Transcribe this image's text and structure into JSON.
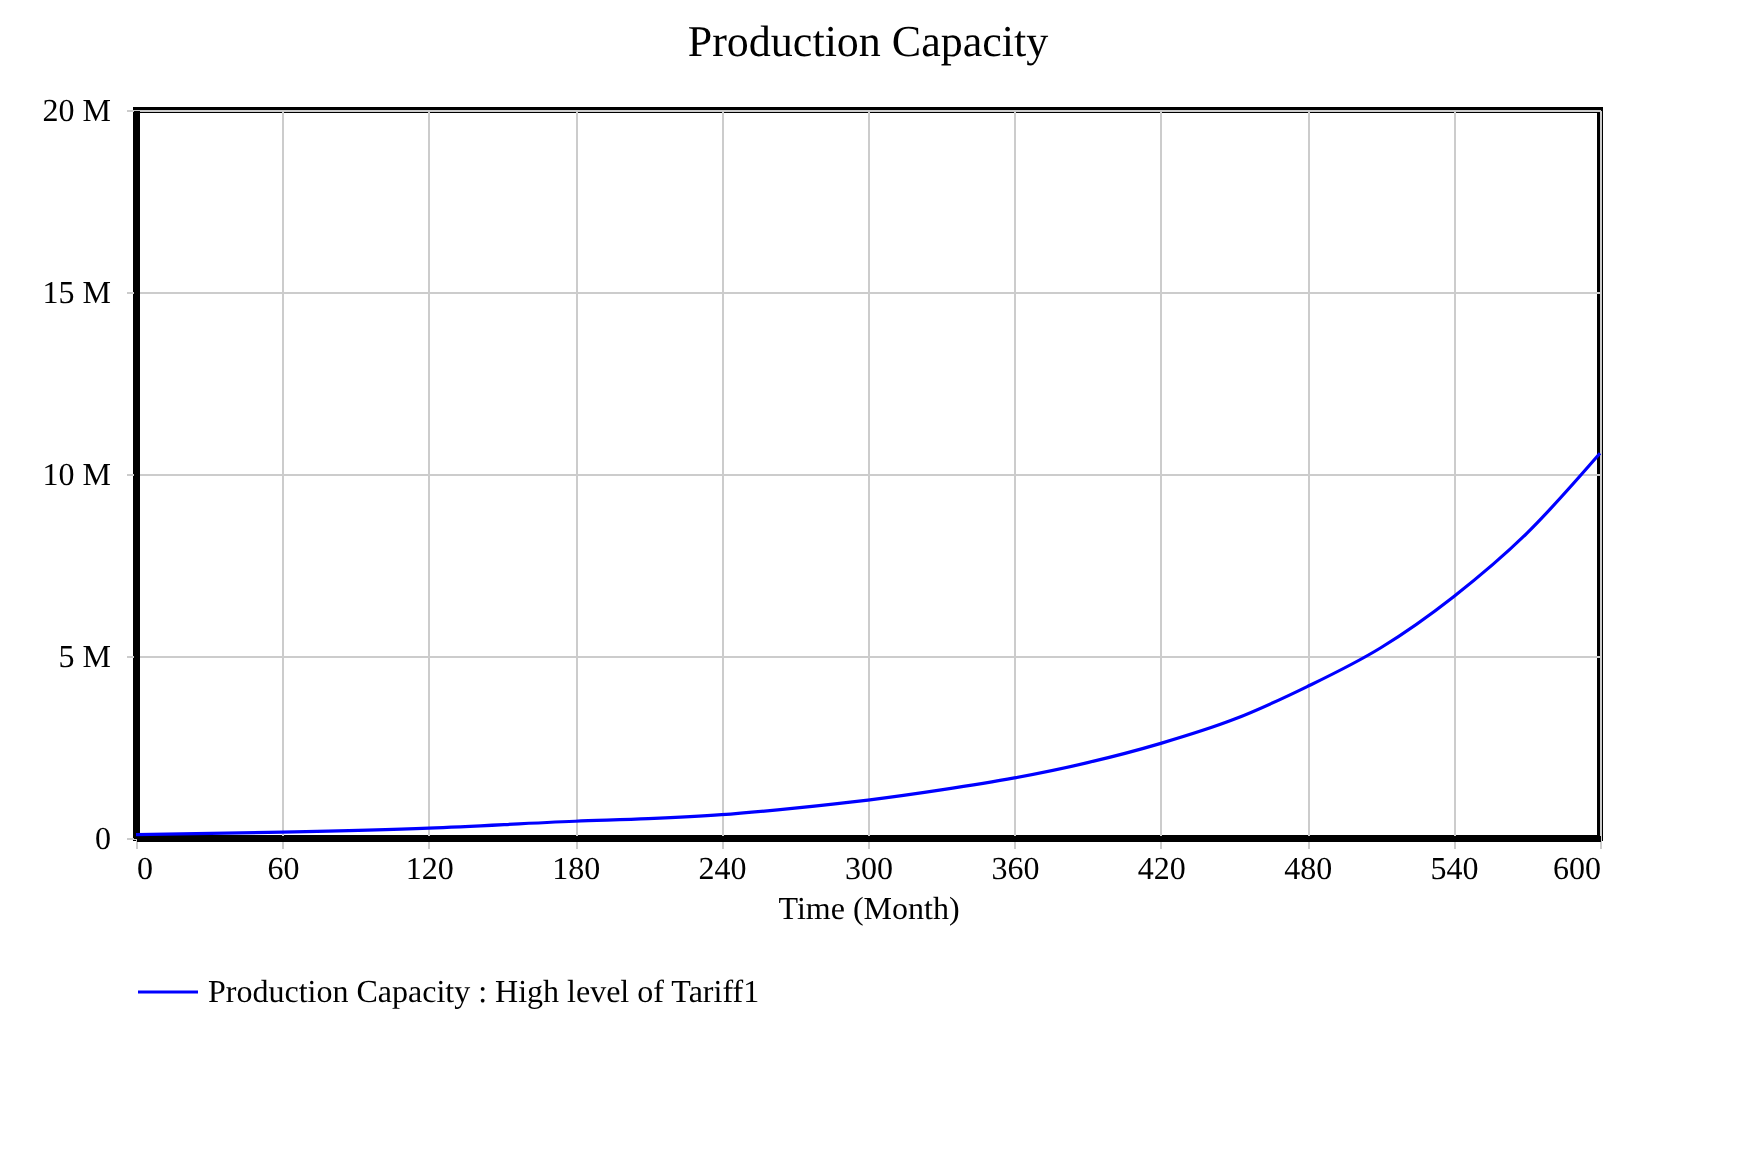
{
  "chart_data": {
    "type": "line",
    "title": "Production Capacity",
    "xlabel": "Time (Month)",
    "x": [
      0,
      60,
      120,
      180,
      210,
      240,
      270,
      300,
      330,
      360,
      390,
      420,
      450,
      480,
      510,
      540,
      570,
      600
    ],
    "series": [
      {
        "name": "Production Capacity : High level of Tariff1",
        "color": "#0000ff",
        "values": [
          90000,
          160000,
          270000,
          460000,
          530000,
          640000,
          820000,
          1040000,
          1320000,
          1650000,
          2070000,
          2600000,
          3260000,
          4160000,
          5220000,
          6630000,
          8370000,
          10570000
        ]
      }
    ],
    "xlim": [
      0,
      600
    ],
    "xticks": [
      0,
      60,
      120,
      180,
      240,
      300,
      360,
      420,
      480,
      540,
      600
    ],
    "ylim": [
      0,
      20000000
    ],
    "yticks": [
      {
        "value": 0,
        "label": "0"
      },
      {
        "value": 5000000,
        "label": "5 M"
      },
      {
        "value": 10000000,
        "label": "10 M"
      },
      {
        "value": 15000000,
        "label": "15 M"
      },
      {
        "value": 20000000,
        "label": "20 M"
      }
    ],
    "grid": true,
    "legend": "bottom"
  }
}
